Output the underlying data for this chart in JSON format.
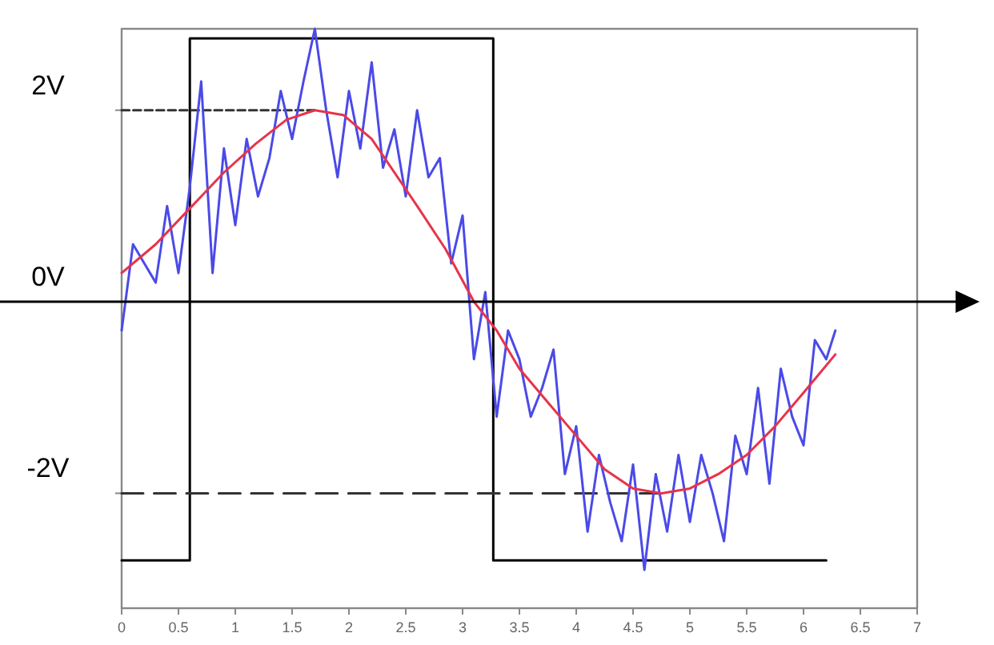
{
  "chart_data": {
    "type": "line",
    "xlim": [
      0,
      7
    ],
    "ylim": [
      -3.2,
      2.85
    ],
    "xticks": [
      0,
      0.5,
      1,
      1.5,
      2,
      2.5,
      3,
      3.5,
      4,
      4.5,
      5,
      5.5,
      6,
      6.5,
      7
    ],
    "yticks": [
      {
        "value": 2,
        "label": "2V"
      },
      {
        "value": 0,
        "label": "0V"
      },
      {
        "value": -2,
        "label": "-2V"
      }
    ],
    "grid": false,
    "ref_lines": [
      {
        "axis": "y",
        "value": 0,
        "color": "#000000"
      }
    ],
    "series": [
      {
        "color": "#000000",
        "line_style": "solid",
        "x": [
          0,
          0.6,
          0.6,
          3.27,
          3.27,
          6.2
        ],
        "values": [
          -2.7,
          -2.7,
          2.75,
          2.75,
          -2.7,
          -2.7
        ]
      },
      {
        "color": "#333333",
        "line_style": "dashed",
        "x": [
          0,
          1.7
        ],
        "values": [
          2,
          2
        ]
      },
      {
        "color": "#333333",
        "line_style": "dashed",
        "x": [
          0,
          4.75
        ],
        "values": [
          -2,
          -2
        ]
      },
      {
        "color": "#4a4ae8",
        "line_style": "solid",
        "x": [
          0,
          0.1,
          0.2,
          0.3,
          0.4,
          0.5,
          0.6,
          0.7,
          0.8,
          0.9,
          1.0,
          1.1,
          1.2,
          1.3,
          1.4,
          1.5,
          1.6,
          1.7,
          1.8,
          1.9,
          2.0,
          2.1,
          2.2,
          2.3,
          2.4,
          2.5,
          2.6,
          2.7,
          2.8,
          2.9,
          3.0,
          3.1,
          3.2,
          3.3,
          3.4,
          3.5,
          3.6,
          3.7,
          3.8,
          3.9,
          4.0,
          4.1,
          4.2,
          4.3,
          4.4,
          4.5,
          4.6,
          4.7,
          4.8,
          4.9,
          5.0,
          5.1,
          5.2,
          5.3,
          5.4,
          5.5,
          5.6,
          5.7,
          5.8,
          5.9,
          6.0,
          6.1,
          6.2,
          6.28
        ],
        "values": [
          -0.3,
          0.6,
          0.4,
          0.2,
          1.0,
          0.3,
          1.2,
          2.3,
          0.3,
          1.6,
          0.8,
          1.7,
          1.1,
          1.5,
          2.2,
          1.7,
          2.3,
          2.85,
          2.0,
          1.3,
          2.2,
          1.6,
          2.5,
          1.4,
          1.8,
          1.1,
          2.0,
          1.3,
          1.5,
          0.4,
          0.9,
          -0.6,
          0.1,
          -1.2,
          -0.3,
          -0.6,
          -1.2,
          -0.9,
          -0.5,
          -1.8,
          -1.3,
          -2.4,
          -1.6,
          -2.1,
          -2.5,
          -1.7,
          -2.8,
          -1.8,
          -2.4,
          -1.6,
          -2.3,
          -1.6,
          -2.0,
          -2.5,
          -1.4,
          -1.8,
          -0.9,
          -1.9,
          -0.7,
          -1.2,
          -1.5,
          -0.4,
          -0.6,
          -0.3
        ]
      },
      {
        "color": "#e8334a",
        "line_style": "solid",
        "x": [
          0,
          0.3,
          0.62,
          0.9,
          1.18,
          1.45,
          1.7,
          1.95,
          2.2,
          2.6,
          2.85,
          3.1,
          3.3,
          3.5,
          3.75,
          4.0,
          4.25,
          4.5,
          4.75,
          5.0,
          5.25,
          5.5,
          5.75,
          6.0,
          6.28
        ],
        "values": [
          0.3,
          0.6,
          1.0,
          1.35,
          1.65,
          1.9,
          2.0,
          1.95,
          1.7,
          1.0,
          0.55,
          0.0,
          -0.3,
          -0.7,
          -1.05,
          -1.4,
          -1.75,
          -1.95,
          -2.0,
          -1.95,
          -1.8,
          -1.6,
          -1.3,
          -0.95,
          -0.55
        ]
      }
    ]
  }
}
